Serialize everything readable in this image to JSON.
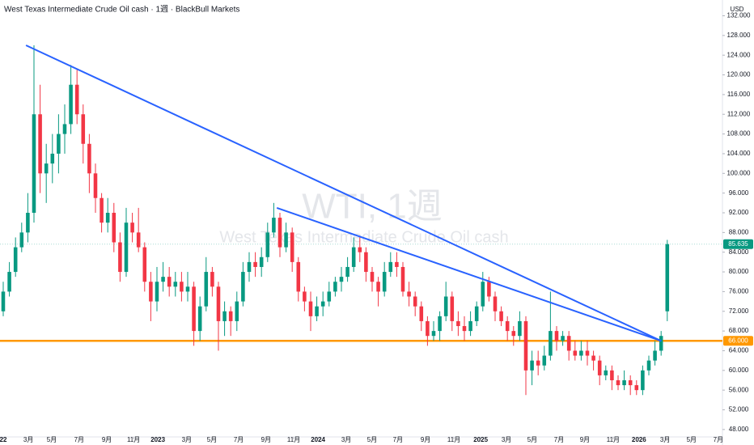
{
  "chart_data": {
    "type": "candlestick",
    "title": "West Texas Intermediate Crude Oil cash · 1週 · BlackBull Markets",
    "watermark": "WTI, 1週",
    "watermark_subtitle": "West Texas Intermediate Crude Oil cash",
    "currency": "USD",
    "up_color": "#089981",
    "down_color": "#f23645",
    "x": [
      0,
      2,
      4,
      6,
      8,
      10,
      12,
      14,
      16,
      18,
      20,
      22,
      24,
      26,
      28,
      30,
      32,
      34,
      36,
      38,
      40,
      42,
      44,
      46,
      48,
      50,
      52,
      54,
      56,
      58,
      60,
      62,
      64,
      66,
      68,
      70,
      72,
      74,
      76,
      78,
      80,
      82,
      84,
      86,
      88,
      90,
      92,
      94,
      96,
      98,
      100,
      102,
      104,
      106,
      108,
      110,
      112,
      114,
      116,
      118,
      120,
      122,
      124,
      126,
      128,
      130,
      132,
      134,
      136,
      138,
      140,
      142,
      144,
      146,
      148,
      150,
      152,
      154,
      156,
      158,
      160,
      162,
      164,
      166,
      168,
      170,
      172,
      174,
      176,
      178,
      180,
      182,
      184,
      186,
      188,
      190,
      192,
      194,
      196,
      198,
      200,
      202,
      204,
      206,
      208,
      210,
      212,
      214,
      216
    ],
    "candles": [
      [
        72,
        78,
        71,
        76
      ],
      [
        76,
        82,
        75,
        80
      ],
      [
        80,
        87,
        79,
        85
      ],
      [
        85,
        90,
        84,
        88
      ],
      [
        88,
        96,
        86,
        92
      ],
      [
        92,
        126,
        90,
        112
      ],
      [
        112,
        118,
        96,
        100
      ],
      [
        100,
        106,
        94,
        102
      ],
      [
        102,
        108,
        98,
        104
      ],
      [
        104,
        112,
        100,
        108
      ],
      [
        108,
        114,
        104,
        110
      ],
      [
        110,
        122,
        108,
        118
      ],
      [
        118,
        121,
        110,
        112
      ],
      [
        112,
        114,
        102,
        106
      ],
      [
        106,
        108,
        96,
        100
      ],
      [
        100,
        102,
        92,
        95
      ],
      [
        95,
        96,
        88,
        90
      ],
      [
        90,
        95,
        88,
        92
      ],
      [
        92,
        94,
        84,
        86
      ],
      [
        86,
        88,
        78,
        80
      ],
      [
        80,
        93,
        79,
        90
      ],
      [
        90,
        92,
        86,
        88
      ],
      [
        88,
        93,
        84,
        85
      ],
      [
        85,
        86,
        76,
        78
      ],
      [
        78,
        80,
        70,
        74
      ],
      [
        74,
        81,
        72,
        78
      ],
      [
        78,
        82,
        76,
        79
      ],
      [
        79,
        81,
        75,
        77
      ],
      [
        77,
        80,
        75,
        78
      ],
      [
        78,
        80,
        74,
        76
      ],
      [
        76,
        80,
        74,
        77
      ],
      [
        77,
        78,
        65,
        68
      ],
      [
        68,
        75,
        66,
        73
      ],
      [
        73,
        83,
        72,
        80
      ],
      [
        80,
        81,
        75,
        77
      ],
      [
        77,
        78,
        64,
        70
      ],
      [
        70,
        74,
        67,
        72
      ],
      [
        72,
        73,
        67,
        70
      ],
      [
        70,
        76,
        68,
        74
      ],
      [
        74,
        82,
        73,
        80
      ],
      [
        80,
        84,
        78,
        82
      ],
      [
        82,
        84,
        79,
        81
      ],
      [
        81,
        85,
        79,
        83
      ],
      [
        83,
        90,
        82,
        88
      ],
      [
        88,
        94,
        87,
        91
      ],
      [
        91,
        92,
        83,
        85
      ],
      [
        85,
        90,
        84,
        88
      ],
      [
        88,
        89,
        80,
        82
      ],
      [
        82,
        83,
        74,
        76
      ],
      [
        76,
        77,
        72,
        74
      ],
      [
        74,
        76,
        68,
        71
      ],
      [
        71,
        75,
        70,
        73
      ],
      [
        73,
        76,
        71,
        74
      ],
      [
        74,
        78,
        73,
        76
      ],
      [
        76,
        79,
        75,
        78
      ],
      [
        78,
        81,
        76,
        79
      ],
      [
        79,
        83,
        78,
        81
      ],
      [
        81,
        87,
        80,
        85
      ],
      [
        85,
        87,
        82,
        84
      ],
      [
        84,
        85,
        78,
        80
      ],
      [
        80,
        81,
        76,
        78
      ],
      [
        78,
        79,
        73,
        76
      ],
      [
        76,
        82,
        75,
        80
      ],
      [
        80,
        84,
        79,
        82
      ],
      [
        82,
        84,
        79,
        81
      ],
      [
        81,
        82,
        75,
        76
      ],
      [
        76,
        78,
        73,
        75
      ],
      [
        75,
        76,
        71,
        73
      ],
      [
        73,
        74,
        68,
        70
      ],
      [
        70,
        71,
        65,
        67
      ],
      [
        67,
        70,
        66,
        68
      ],
      [
        68,
        72,
        66,
        71
      ],
      [
        71,
        78,
        70,
        75
      ],
      [
        75,
        76,
        68,
        70
      ],
      [
        70,
        72,
        67,
        69
      ],
      [
        69,
        71,
        66,
        68
      ],
      [
        68,
        72,
        67,
        70
      ],
      [
        70,
        74,
        69,
        73
      ],
      [
        73,
        80,
        72,
        78
      ],
      [
        78,
        79,
        74,
        75
      ],
      [
        75,
        76,
        70,
        72
      ],
      [
        72,
        73,
        69,
        70
      ],
      [
        70,
        71,
        66,
        68
      ],
      [
        68,
        69,
        65,
        67
      ],
      [
        67,
        72,
        66,
        70
      ],
      [
        70,
        71,
        55,
        60
      ],
      [
        60,
        64,
        57,
        62
      ],
      [
        62,
        64,
        59,
        61
      ],
      [
        61,
        65,
        60,
        63
      ],
      [
        63,
        76,
        62,
        68
      ],
      [
        68,
        69,
        64,
        66
      ],
      [
        66,
        68,
        65,
        67
      ],
      [
        67,
        68,
        62,
        64
      ],
      [
        64,
        66,
        62,
        63
      ],
      [
        63,
        66,
        62,
        64
      ],
      [
        64,
        66,
        61,
        63
      ],
      [
        63,
        64,
        60,
        62
      ],
      [
        62,
        63,
        57,
        59
      ],
      [
        59,
        61,
        58,
        60
      ],
      [
        60,
        61,
        56,
        58
      ],
      [
        58,
        59,
        56,
        57
      ],
      [
        57,
        60,
        56,
        58
      ],
      [
        58,
        59,
        55,
        57
      ],
      [
        57,
        58,
        55,
        56
      ],
      [
        56,
        61,
        55,
        60
      ],
      [
        60,
        63,
        59,
        62
      ],
      [
        62,
        66,
        61,
        64
      ],
      [
        64,
        68,
        63,
        67
      ],
      [
        72,
        86.5,
        70,
        85.635
      ]
    ],
    "trendlines": [
      {
        "color": "#2962ff",
        "x": [
          7.4,
          214
        ],
        "y": [
          126,
          66
        ]
      },
      {
        "color": "#2962ff",
        "x": [
          89,
          214
        ],
        "y": [
          93,
          66
        ]
      }
    ],
    "hline": {
      "value": 66,
      "label": "66.000",
      "color": "#ff9800"
    },
    "last_price": {
      "value": 85.635,
      "label": "85.635"
    },
    "xlim": [
      -1.05,
      233.95
    ],
    "ylim": [
      46.5,
      135.2
    ],
    "xticks": [
      {
        "value": 0,
        "label": "22"
      },
      {
        "value": 8.2,
        "label": "3月"
      },
      {
        "value": 15.8,
        "label": "5月"
      },
      {
        "value": 24.7,
        "label": "7月"
      },
      {
        "value": 33.7,
        "label": "9月"
      },
      {
        "value": 42.4,
        "label": "11月"
      },
      {
        "value": 50.3,
        "label": "2023"
      },
      {
        "value": 59.7,
        "label": "3月"
      },
      {
        "value": 67.9,
        "label": "5月"
      },
      {
        "value": 76.6,
        "label": "7月"
      },
      {
        "value": 85.5,
        "label": "9月"
      },
      {
        "value": 94.5,
        "label": "11月"
      },
      {
        "value": 102.4,
        "label": "2024"
      },
      {
        "value": 111.6,
        "label": "3月"
      },
      {
        "value": 120,
        "label": "5月"
      },
      {
        "value": 128.4,
        "label": "7月"
      },
      {
        "value": 137.4,
        "label": "9月"
      },
      {
        "value": 146.6,
        "label": "11月"
      },
      {
        "value": 155.3,
        "label": "2025"
      },
      {
        "value": 163.7,
        "label": "3月"
      },
      {
        "value": 172.1,
        "label": "5月"
      },
      {
        "value": 180.8,
        "label": "7月"
      },
      {
        "value": 189.2,
        "label": "9月"
      },
      {
        "value": 198.4,
        "label": "11月"
      },
      {
        "value": 206.8,
        "label": "2026"
      },
      {
        "value": 215.3,
        "label": "3月"
      },
      {
        "value": 223.9,
        "label": "5月"
      },
      {
        "value": 232.6,
        "label": "7月"
      }
    ],
    "yticks": [
      {
        "value": 48,
        "label": "48.000"
      },
      {
        "value": 52,
        "label": "52.000"
      },
      {
        "value": 56,
        "label": "56.000"
      },
      {
        "value": 60,
        "label": "60.000"
      },
      {
        "value": 64,
        "label": "64.000"
      },
      {
        "value": 68,
        "label": "68.000"
      },
      {
        "value": 72,
        "label": "72.000"
      },
      {
        "value": 76,
        "label": "76.000"
      },
      {
        "value": 80,
        "label": "80.000"
      },
      {
        "value": 84,
        "label": "84.000"
      },
      {
        "value": 88,
        "label": "88.000"
      },
      {
        "value": 92,
        "label": "92.000"
      },
      {
        "value": 96,
        "label": "96.000"
      },
      {
        "value": 100,
        "label": "100.000"
      },
      {
        "value": 104,
        "label": "104.000"
      },
      {
        "value": 108,
        "label": "108.000"
      },
      {
        "value": 112,
        "label": "112.000"
      },
      {
        "value": 116,
        "label": "116.000"
      },
      {
        "value": 120,
        "label": "120.000"
      },
      {
        "value": 124,
        "label": "124.000"
      },
      {
        "value": 128,
        "label": "128.000"
      },
      {
        "value": 132,
        "label": "132.000"
      }
    ]
  }
}
